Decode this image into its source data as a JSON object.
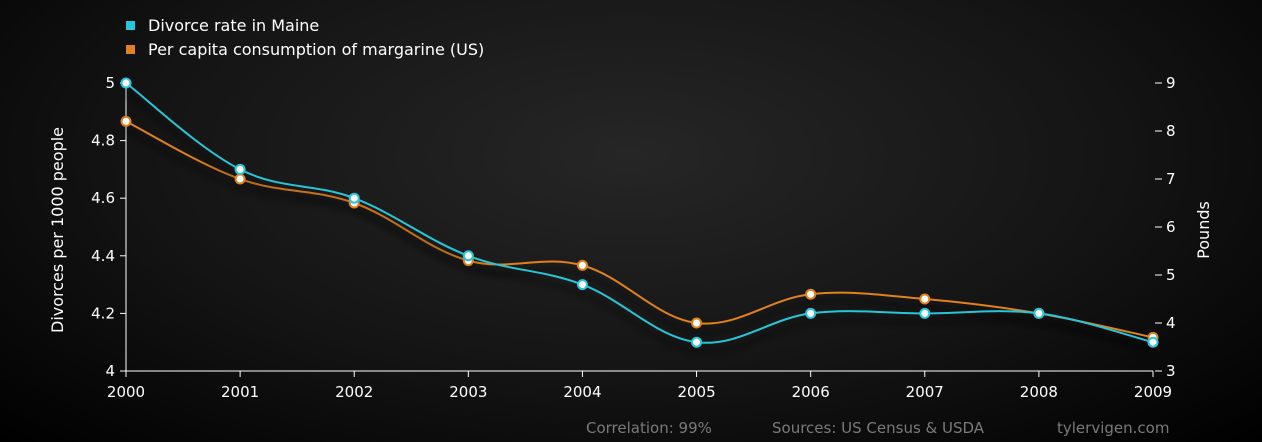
{
  "chart_data": {
    "type": "line",
    "x": [
      2000,
      2001,
      2002,
      2003,
      2004,
      2005,
      2006,
      2007,
      2008,
      2009
    ],
    "series": [
      {
        "name": "Divorce rate in Maine",
        "axis": "left",
        "color": "#27c6d8",
        "values": [
          5.0,
          4.7,
          4.6,
          4.4,
          4.3,
          4.1,
          4.2,
          4.2,
          4.2,
          4.1
        ]
      },
      {
        "name": "Per capita consumption of margarine (US)",
        "axis": "right",
        "color": "#e0811f",
        "values": [
          8.2,
          7.0,
          6.5,
          5.3,
          5.2,
          4.0,
          4.6,
          4.5,
          4.2,
          3.7
        ]
      }
    ],
    "ylabel": "Divorces per 1000 people",
    "ylabel_right": "Pounds",
    "ylim": [
      4,
      5
    ],
    "ylim_right": [
      3,
      9
    ],
    "yticks": [
      "4",
      "4.2",
      "4.4",
      "4.6",
      "4.8",
      "5"
    ],
    "yticks_right": [
      "3",
      "4",
      "5",
      "6",
      "7",
      "8",
      "9"
    ],
    "xticks": [
      "2000",
      "2001",
      "2002",
      "2003",
      "2004",
      "2005",
      "2006",
      "2007",
      "2008",
      "2009"
    ],
    "legend_position": "top-left",
    "grid": false
  },
  "footer": {
    "correlation": "Correlation: 99%",
    "sources": "Sources: US Census & USDA",
    "site": "tylervigen.com"
  }
}
